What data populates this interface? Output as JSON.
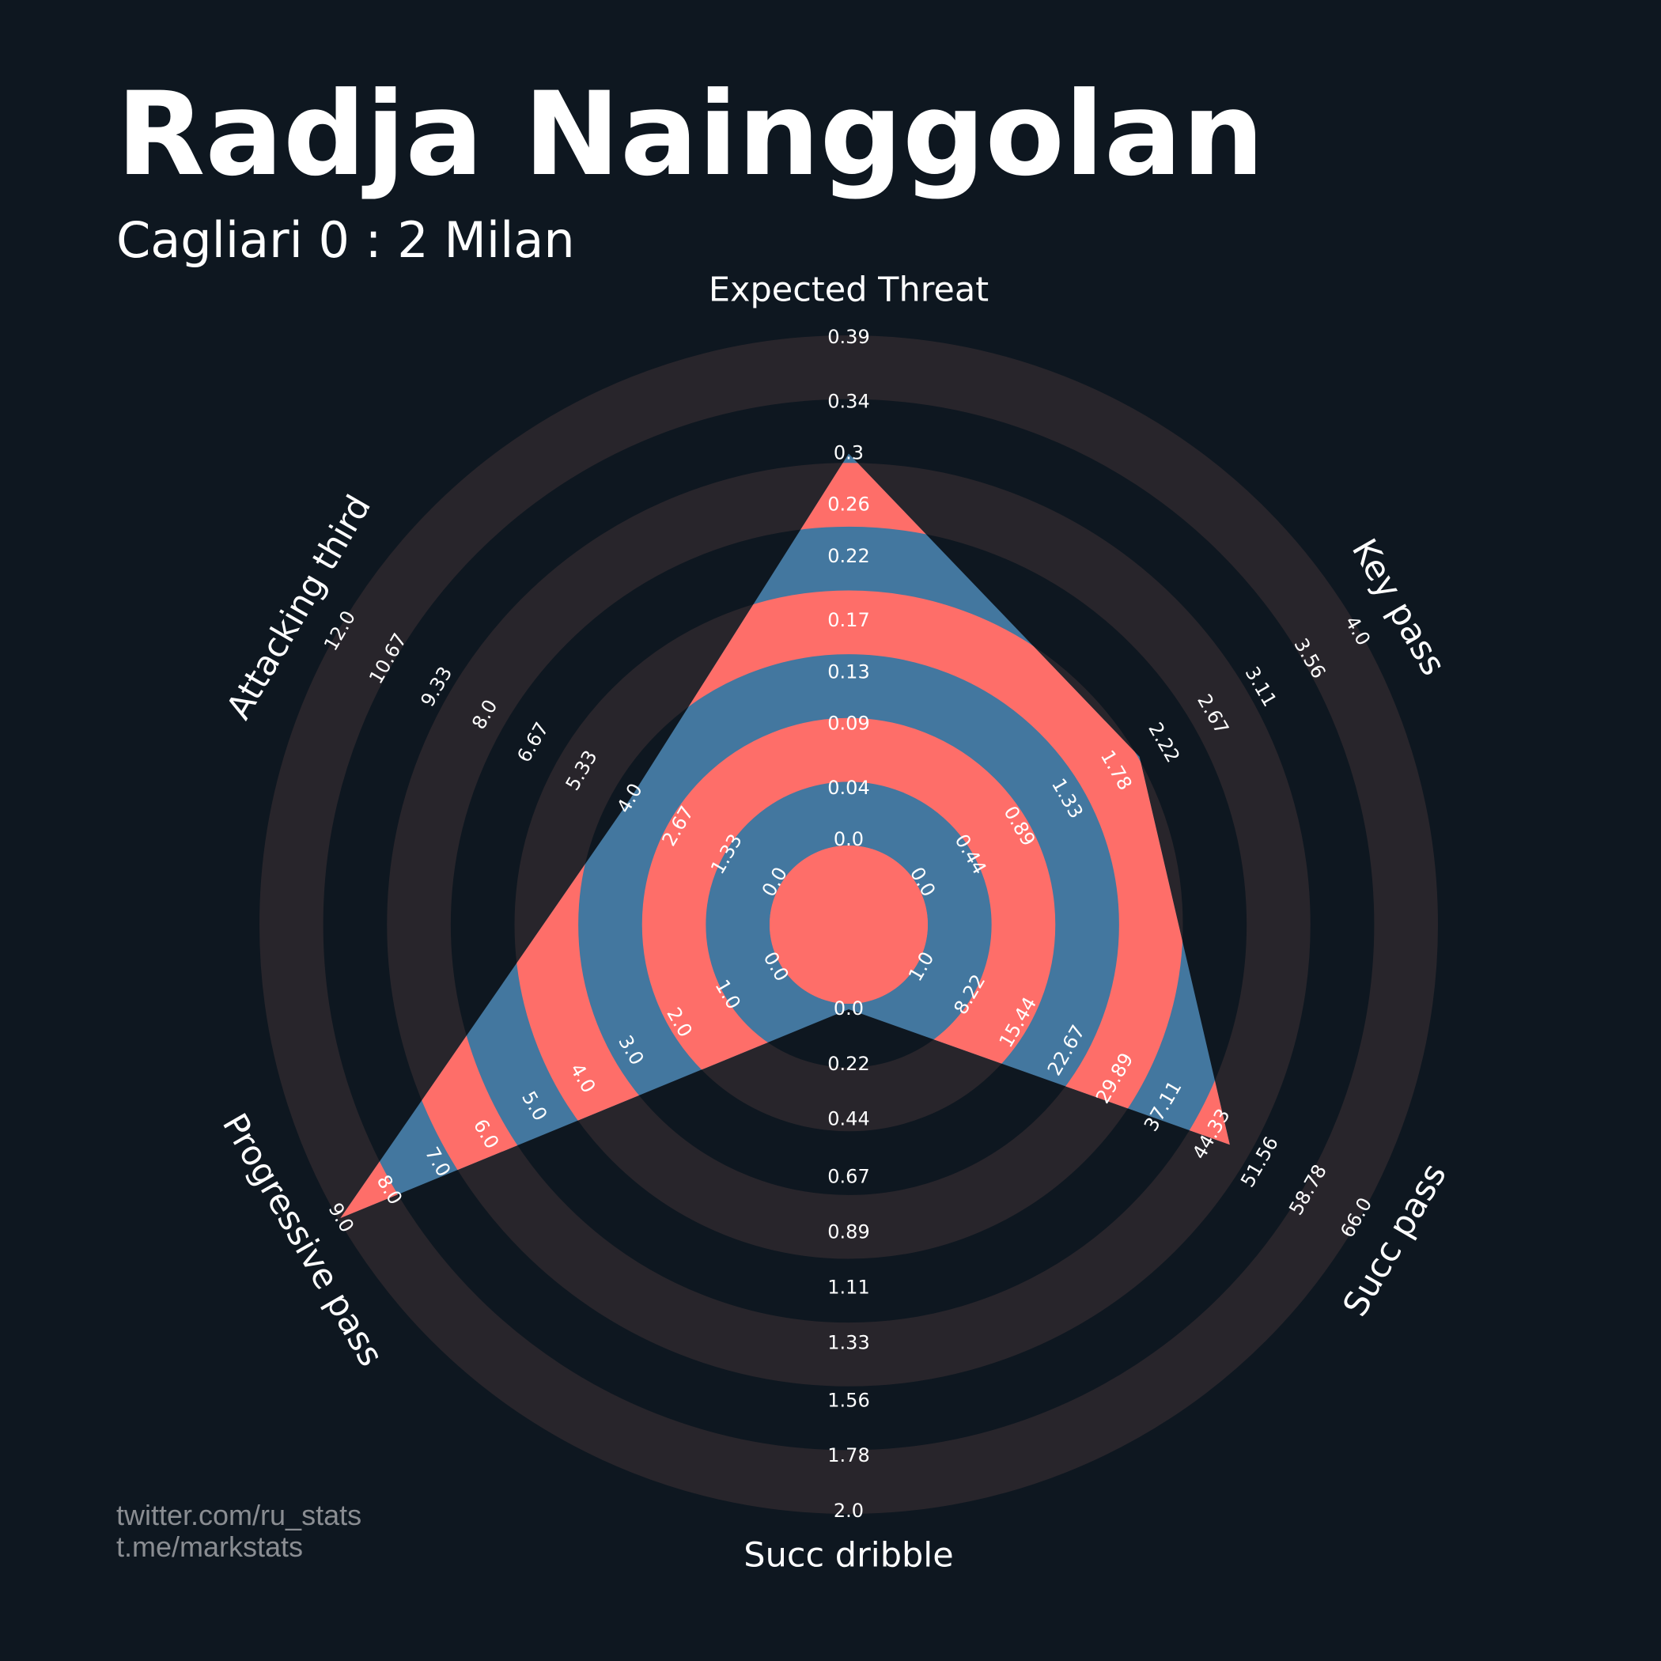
{
  "chart_data": {
    "type": "radar",
    "title": "Radja Nainggolan",
    "subtitle": "Cagliari 0 : 2 Milan",
    "axes": [
      {
        "name": "Expected Threat",
        "value": 0.3,
        "lim": [
          0,
          0.39
        ],
        "ticks": [
          {
            "value": 0,
            "label": "0.0"
          },
          0.04,
          0.09,
          0.13,
          0.17,
          0.22,
          0.26,
          0.3,
          0.34,
          0.39
        ]
      },
      {
        "name": "Key pass",
        "value": 2,
        "lim": [
          0,
          4
        ],
        "ticks": [
          {
            "value": 0,
            "label": "0.0"
          },
          0.44,
          0.89,
          1.33,
          1.78,
          2.22,
          2.67,
          3.11,
          3.56,
          {
            "value": 4,
            "label": "4.0"
          }
        ]
      },
      {
        "name": "Succ pass",
        "value": 47,
        "lim": [
          1,
          66
        ],
        "ticks": [
          {
            "value": 1,
            "label": "1.0"
          },
          8.22,
          15.44,
          22.67,
          29.89,
          37.11,
          44.33,
          51.56,
          58.78,
          {
            "value": 66,
            "label": "66.0"
          }
        ]
      },
      {
        "name": "Succ dribble",
        "value": 0,
        "lim": [
          0,
          2
        ],
        "ticks": [
          {
            "value": 0,
            "label": "0.0"
          },
          0.22,
          0.44,
          0.67,
          0.89,
          1.11,
          1.33,
          1.56,
          1.78,
          {
            "value": 2,
            "label": "2.0"
          }
        ]
      },
      {
        "name": "Progressive pass",
        "value": 9,
        "lim": [
          0,
          9
        ],
        "ticks": [
          {
            "value": 0,
            "label": "0.0"
          },
          {
            "value": 1,
            "label": "1.0"
          },
          {
            "value": 2,
            "label": "2.0"
          },
          {
            "value": 3,
            "label": "3.0"
          },
          {
            "value": 4,
            "label": "4.0"
          },
          {
            "value": 5,
            "label": "5.0"
          },
          {
            "value": 6,
            "label": "6.0"
          },
          {
            "value": 7,
            "label": "7.0"
          },
          {
            "value": 8,
            "label": "8.0"
          },
          {
            "value": 9,
            "label": "9.0"
          }
        ]
      },
      {
        "name": "Attacking third",
        "value": 4,
        "lim": [
          0,
          12
        ],
        "ticks": [
          {
            "value": 0,
            "label": "0.0"
          },
          1.33,
          2.67,
          {
            "value": 4,
            "label": "4.0"
          },
          5.33,
          6.67,
          {
            "value": 8,
            "label": "8.0"
          },
          9.33,
          10.67,
          {
            "value": 12,
            "label": "12.0"
          }
        ]
      }
    ],
    "fill_color": "#43779f",
    "ring_color_inside": "#fe6e69",
    "ring_color_outside": "#28252b"
  },
  "footer": [
    "twitter.com/ru_stats",
    "t.me/markstats"
  ]
}
